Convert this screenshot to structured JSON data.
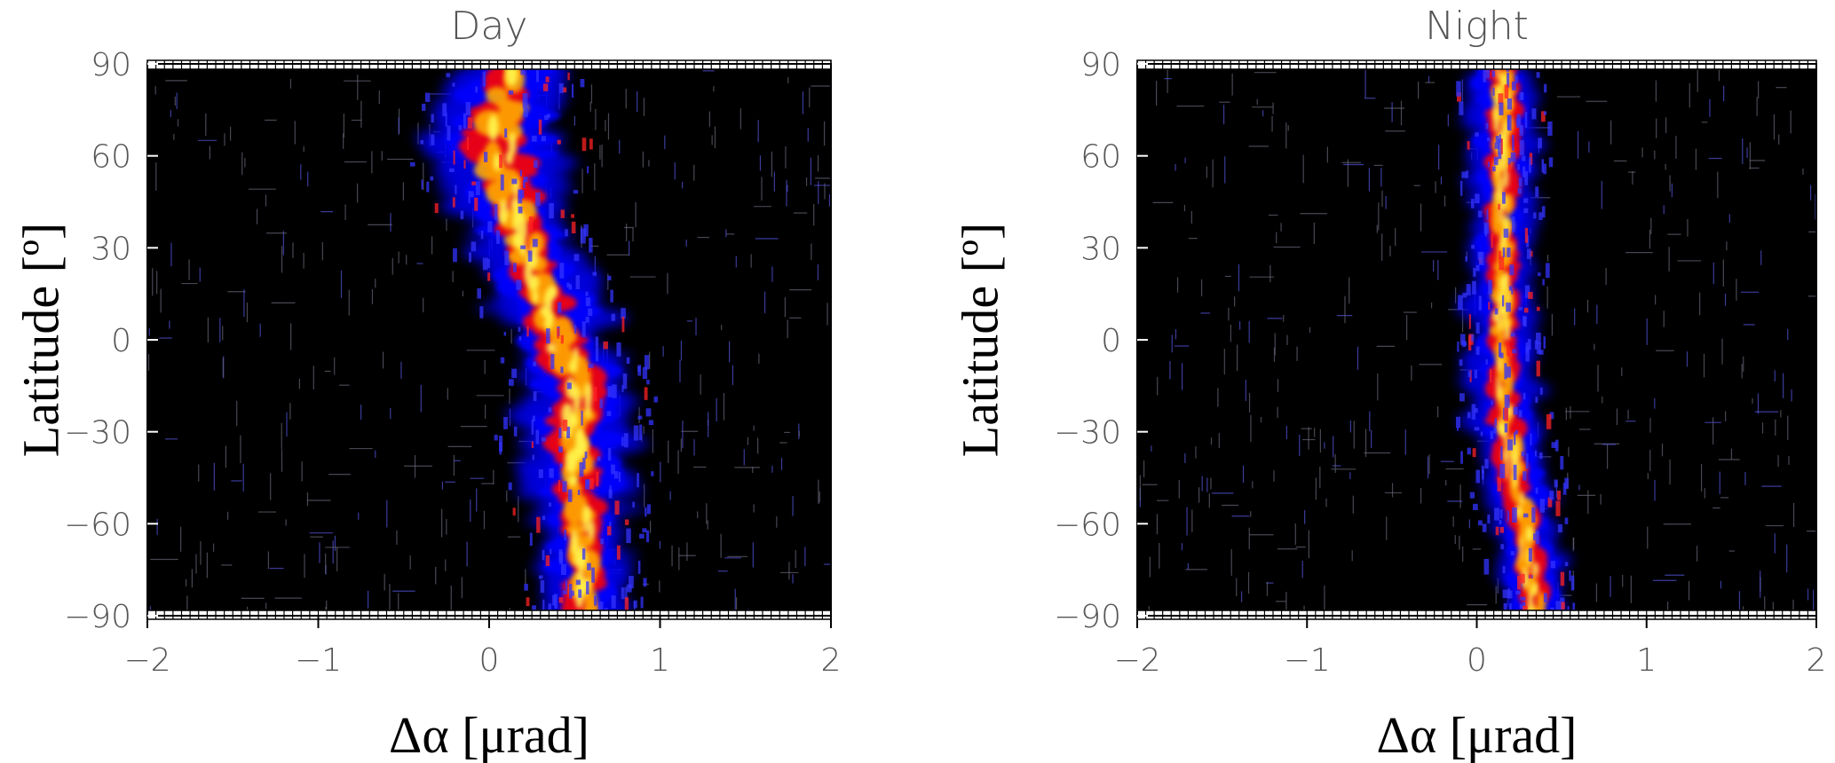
{
  "chart_data": [
    {
      "type": "heatmap",
      "title": "Day",
      "xlabel": "Δα [μrad]",
      "ylabel": "Latitude [º]",
      "xlim": [
        -2,
        2
      ],
      "ylim": [
        -90,
        90
      ],
      "xticks": [
        -2,
        -1,
        0,
        1,
        2
      ],
      "yticks": [
        90,
        60,
        30,
        0,
        -30,
        -60,
        -90
      ],
      "xtick_labels": [
        "−2",
        "−1",
        "0",
        "1",
        "2"
      ],
      "ytick_labels": [
        "90",
        "60",
        "30",
        "0",
        "−30",
        "−60",
        "−90"
      ],
      "grid": false,
      "background": "#000000",
      "colorscale": [
        "#000000",
        "#0000ff",
        "#ff0000",
        "#ffaa00",
        "#ffff55"
      ],
      "ridge": [
        {
          "lat": 90,
          "center": 0.13,
          "width": 0.22
        },
        {
          "lat": 75,
          "center": 0.08,
          "width": 0.25
        },
        {
          "lat": 60,
          "center": 0.05,
          "width": 0.28
        },
        {
          "lat": 45,
          "center": 0.12,
          "width": 0.25
        },
        {
          "lat": 30,
          "center": 0.22,
          "width": 0.22
        },
        {
          "lat": 15,
          "center": 0.32,
          "width": 0.22
        },
        {
          "lat": 0,
          "center": 0.42,
          "width": 0.24
        },
        {
          "lat": -15,
          "center": 0.52,
          "width": 0.22
        },
        {
          "lat": -30,
          "center": 0.5,
          "width": 0.24
        },
        {
          "lat": -45,
          "center": 0.52,
          "width": 0.22
        },
        {
          "lat": -60,
          "center": 0.55,
          "width": 0.2
        },
        {
          "lat": -75,
          "center": 0.55,
          "width": 0.18
        },
        {
          "lat": -90,
          "center": 0.55,
          "width": 0.16
        }
      ]
    },
    {
      "type": "heatmap",
      "title": "Night",
      "xlabel": "Δα [μrad]",
      "ylabel": "Latitude [º]",
      "xlim": [
        -2,
        2
      ],
      "ylim": [
        -90,
        90
      ],
      "xticks": [
        -2,
        -1,
        0,
        1,
        2
      ],
      "yticks": [
        90,
        60,
        30,
        0,
        -30,
        -60,
        -90
      ],
      "xtick_labels": [
        "−2",
        "−1",
        "0",
        "1",
        "2"
      ],
      "ytick_labels": [
        "90",
        "60",
        "30",
        "0",
        "−30",
        "−60",
        "−90"
      ],
      "grid": false,
      "background": "#000000",
      "colorscale": [
        "#000000",
        "#0000ff",
        "#ff0000",
        "#ffaa00",
        "#ffff55"
      ],
      "ridge": [
        {
          "lat": 90,
          "center": 0.15,
          "width": 0.14
        },
        {
          "lat": 75,
          "center": 0.15,
          "width": 0.14
        },
        {
          "lat": 60,
          "center": 0.15,
          "width": 0.14
        },
        {
          "lat": 45,
          "center": 0.15,
          "width": 0.13
        },
        {
          "lat": 30,
          "center": 0.15,
          "width": 0.13
        },
        {
          "lat": 15,
          "center": 0.15,
          "width": 0.14
        },
        {
          "lat": 0,
          "center": 0.15,
          "width": 0.14
        },
        {
          "lat": -15,
          "center": 0.15,
          "width": 0.14
        },
        {
          "lat": -30,
          "center": 0.18,
          "width": 0.15
        },
        {
          "lat": -45,
          "center": 0.22,
          "width": 0.15
        },
        {
          "lat": -60,
          "center": 0.28,
          "width": 0.14
        },
        {
          "lat": -75,
          "center": 0.32,
          "width": 0.14
        },
        {
          "lat": -90,
          "center": 0.35,
          "width": 0.13
        }
      ]
    }
  ]
}
